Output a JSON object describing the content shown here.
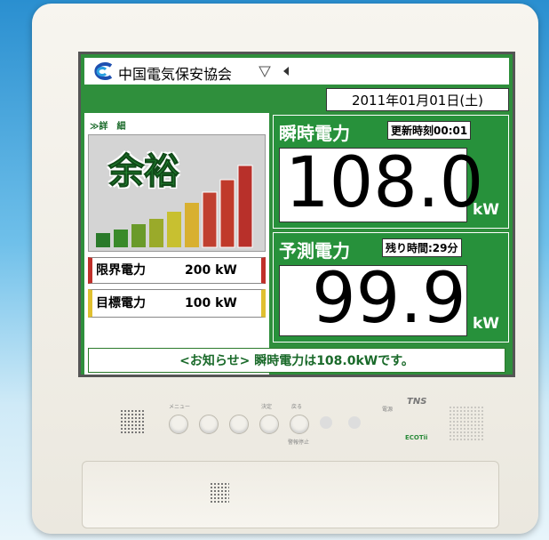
{
  "header": {
    "organization": "中国電気保安協会",
    "date": "2011年01月01日(土)"
  },
  "status": {
    "detail_link": "≫詳　細",
    "level": "余裕"
  },
  "limits": [
    {
      "label": "限界電力",
      "value": "200 kW"
    },
    {
      "label": "目標電力",
      "value": "100 kW"
    }
  ],
  "instant": {
    "label": "瞬時電力",
    "info": "更新時刻00:01",
    "value": "108.0",
    "unit": "kW"
  },
  "forecast": {
    "label": "予測電力",
    "info": "残り時間:29分",
    "value": "99.9",
    "unit": "kW"
  },
  "notice": "<お知らせ> 瞬時電力は108.0kWです。",
  "device": {
    "buttons": [
      "メニュー",
      "決定",
      "戻る"
    ],
    "alarm_stop": "警報停止",
    "power": "電源",
    "brand": "TNS",
    "product": "ECOTii"
  }
}
